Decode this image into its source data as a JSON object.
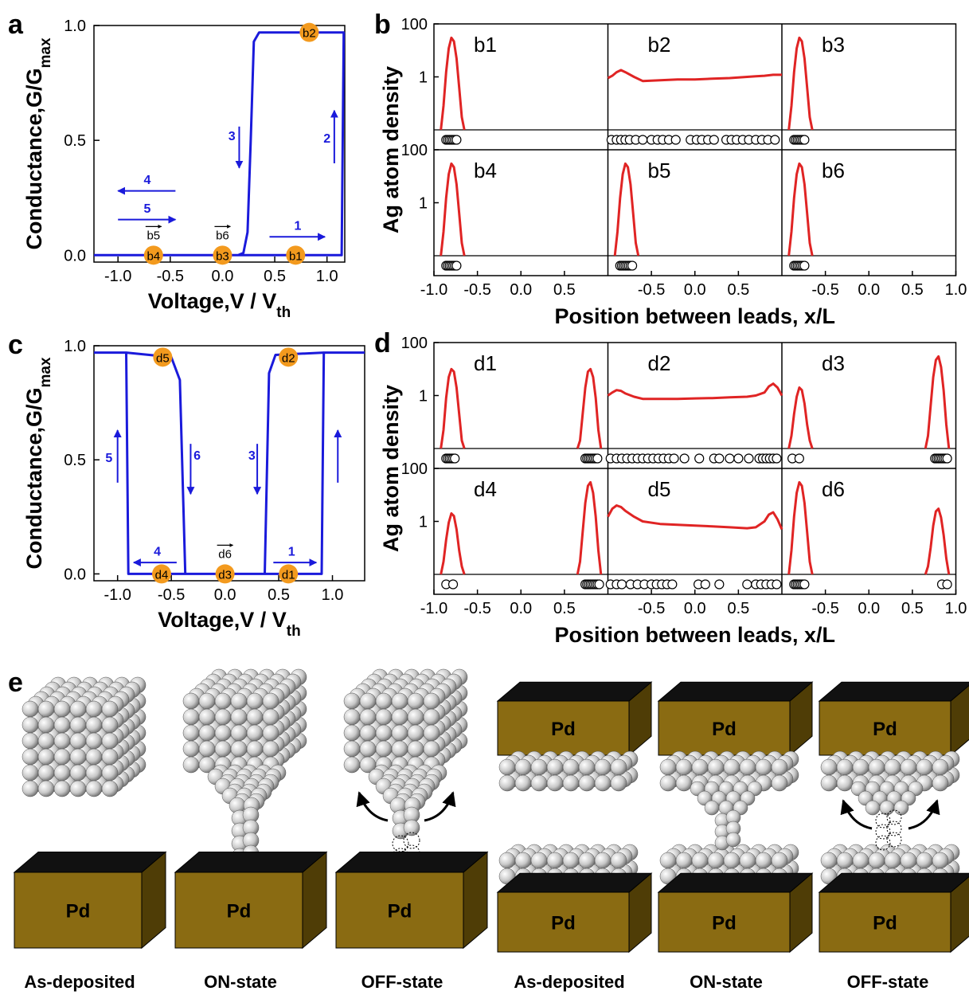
{
  "chart_data": [
    {
      "type": "line",
      "label": "a",
      "xlabel": "Voltage,V / V",
      "xlabel_sub": "th",
      "ylabel": "Conductance,G/G",
      "ylabel_sub": "max",
      "color": "#1a1adb",
      "xlim": [
        -1.23,
        1.17
      ],
      "ylim": [
        -0.03,
        1.0
      ],
      "xticks": [
        {
          "value": -1,
          "label": "-1.0"
        },
        {
          "value": -0.5,
          "label": "-0.5"
        },
        {
          "value": 0,
          "label": "0.0"
        },
        {
          "value": 0.5,
          "label": "0.5"
        },
        {
          "value": 1,
          "label": "1.0"
        }
      ],
      "yticks": [
        {
          "value": 0,
          "label": "0.0"
        },
        {
          "value": 0.5,
          "label": "0.5"
        },
        {
          "value": 1,
          "label": "1.0"
        }
      ],
      "x": [
        -1.23,
        1.14,
        1.16,
        0.35,
        0.3,
        0.27,
        0.24,
        0.2,
        0.15,
        -1.23
      ],
      "values": [
        0,
        0,
        0.97,
        0.97,
        0.93,
        0.5,
        0.1,
        0.01,
        0,
        0
      ],
      "marker_color": "#f39a1e",
      "markers": [
        {
          "label": "b1",
          "x": 0.7,
          "y": 0
        },
        {
          "label": "b2",
          "x": 0.83,
          "y": 0.97
        },
        {
          "label": "b3",
          "x": 0,
          "y": 0
        },
        {
          "label": "b4",
          "x": -0.66,
          "y": 0
        }
      ],
      "labels": [
        {
          "text": "b5",
          "x": -0.66
        },
        {
          "text": "b6",
          "x": 0
        }
      ],
      "arrow_labels": [
        "1",
        "2",
        "3",
        "4",
        "5"
      ]
    },
    {
      "type": "small-multiples",
      "label": "b",
      "xlabel": "Position between leads, x/L",
      "ylabel": "Ag atom density",
      "color": "#e02424",
      "log_y": true,
      "xlim": [
        -1,
        1
      ],
      "ylim": [
        0.01,
        100
      ],
      "yticks": [
        1,
        100
      ],
      "xticks": [
        {
          "value": -1,
          "label": "-1.0"
        },
        {
          "value": -0.5,
          "label": "-0.5"
        },
        {
          "value": 0,
          "label": "0.0"
        },
        {
          "value": 0.5,
          "label": "0.5"
        },
        {
          "value": 1,
          "label": "1.0"
        }
      ],
      "panels": [
        {
          "title": "b1",
          "x": [
            -0.92,
            -0.89,
            -0.86,
            -0.83,
            -0.8,
            -0.77,
            -0.74,
            -0.71,
            -0.68,
            -0.65
          ],
          "values": [
            0.01,
            0.08,
            1.5,
            12,
            30,
            22,
            5,
            0.4,
            0.03,
            0.01
          ],
          "atoms": [
            -0.86,
            -0.84,
            -0.82,
            -0.8,
            -0.78,
            -0.76,
            -0.74
          ]
        },
        {
          "title": "b2",
          "x": [
            -1,
            -0.95,
            -0.9,
            -0.85,
            -0.8,
            -0.7,
            -0.6,
            -0.4,
            -0.2,
            0,
            0.2,
            0.4,
            0.6,
            0.7,
            0.8,
            0.85,
            0.9,
            0.95,
            1
          ],
          "values": [
            0.9,
            1.1,
            1.5,
            1.8,
            1.5,
            1.0,
            0.7,
            0.75,
            0.8,
            0.8,
            0.85,
            0.9,
            1.0,
            1.05,
            1.1,
            1.15,
            1.2,
            1.2,
            1.2
          ],
          "atoms": [
            -0.96,
            -0.9,
            -0.85,
            -0.8,
            -0.75,
            -0.68,
            -0.6,
            -0.5,
            -0.43,
            -0.37,
            -0.3,
            -0.22,
            -0.05,
            0.02,
            0.08,
            0.15,
            0.22,
            0.36,
            0.42,
            0.48,
            0.55,
            0.62,
            0.7,
            0.77,
            0.84,
            0.92
          ]
        },
        {
          "title": "b3",
          "x": [
            -0.92,
            -0.89,
            -0.86,
            -0.83,
            -0.8,
            -0.77,
            -0.74,
            -0.71,
            -0.68,
            -0.65
          ],
          "values": [
            0.01,
            0.08,
            1.5,
            12,
            30,
            22,
            5,
            0.4,
            0.03,
            0.01
          ],
          "atoms": [
            -0.86,
            -0.84,
            -0.82,
            -0.8,
            -0.78,
            -0.76,
            -0.74
          ]
        },
        {
          "title": "b4",
          "x": [
            -0.92,
            -0.89,
            -0.86,
            -0.83,
            -0.8,
            -0.77,
            -0.74,
            -0.71,
            -0.68,
            -0.65
          ],
          "values": [
            0.01,
            0.08,
            1.5,
            12,
            30,
            22,
            5,
            0.4,
            0.03,
            0.01
          ],
          "atoms": [
            -0.86,
            -0.84,
            -0.82,
            -0.8,
            -0.78,
            -0.76,
            -0.74
          ]
        },
        {
          "title": "b5",
          "x": [
            -0.92,
            -0.89,
            -0.86,
            -0.83,
            -0.8,
            -0.77,
            -0.74,
            -0.71,
            -0.68,
            -0.65
          ],
          "values": [
            0.01,
            0.08,
            1.5,
            12,
            30,
            22,
            5,
            0.4,
            0.03,
            0.01
          ],
          "atoms": [
            -0.86,
            -0.84,
            -0.82,
            -0.8,
            -0.78,
            -0.76,
            -0.74,
            -0.72
          ]
        },
        {
          "title": "b6",
          "x": [
            -0.92,
            -0.89,
            -0.86,
            -0.83,
            -0.8,
            -0.77,
            -0.74,
            -0.71,
            -0.68,
            -0.65
          ],
          "values": [
            0.01,
            0.08,
            1.5,
            12,
            30,
            22,
            5,
            0.4,
            0.03,
            0.01
          ],
          "atoms": [
            -0.86,
            -0.84,
            -0.82,
            -0.8,
            -0.78,
            -0.76,
            -0.74
          ]
        }
      ]
    },
    {
      "type": "line",
      "label": "c",
      "xlabel": "Voltage,V / V",
      "xlabel_sub": "th",
      "ylabel": "Conductance,G/G",
      "ylabel_sub": "max",
      "color": "#1a1adb",
      "xlim": [
        -1.22,
        1.3
      ],
      "ylim": [
        -0.03,
        1.0
      ],
      "xticks": [
        {
          "value": -1,
          "label": "-1.0"
        },
        {
          "value": -0.5,
          "label": "-0.5"
        },
        {
          "value": 0,
          "label": "0.0"
        },
        {
          "value": 0.5,
          "label": "0.5"
        },
        {
          "value": 1,
          "label": "1.0"
        }
      ],
      "yticks": [
        {
          "value": 0,
          "label": "0.0"
        },
        {
          "value": 0.5,
          "label": "0.5"
        },
        {
          "value": 1,
          "label": "1.0"
        }
      ],
      "x": [
        -1.22,
        -0.92,
        -0.9,
        0.9,
        0.92,
        1.3,
        null,
        -0.92,
        -0.5,
        -0.42,
        -0.37,
        0.37,
        0.41,
        0.47,
        0.92
      ],
      "values": [
        0.97,
        0.97,
        0,
        0,
        0.97,
        0.97,
        null,
        0.97,
        0.95,
        0.85,
        0,
        0,
        0.88,
        0.96,
        0.97
      ],
      "marker_color": "#f39a1e",
      "markers": [
        {
          "label": "d1",
          "x": 0.59,
          "y": 0
        },
        {
          "label": "d2",
          "x": 0.59,
          "y": 0.95
        },
        {
          "label": "d3",
          "x": 0,
          "y": 0
        },
        {
          "label": "d4",
          "x": -0.59,
          "y": 0
        },
        {
          "label": "d5",
          "x": -0.58,
          "y": 0.95
        }
      ],
      "labels": [
        {
          "text": "d6",
          "x": 0
        }
      ],
      "arrow_labels": [
        "1",
        "3",
        "4",
        "5",
        "6"
      ]
    },
    {
      "type": "small-multiples",
      "label": "d",
      "xlabel": "Position between leads, x/L",
      "ylabel": "Ag atom density",
      "color": "#e02424",
      "log_y": true,
      "xlim": [
        -1,
        1
      ],
      "ylim": [
        0.01,
        100
      ],
      "yticks": [
        1,
        100
      ],
      "xticks": [
        {
          "value": -1,
          "label": "-1.0"
        },
        {
          "value": -0.5,
          "label": "-0.5"
        },
        {
          "value": 0,
          "label": "0.0"
        },
        {
          "value": 0.5,
          "label": "0.5"
        },
        {
          "value": 1,
          "label": "1.0"
        }
      ],
      "panels": [
        {
          "title": "d1",
          "x": [
            -0.92,
            -0.89,
            -0.86,
            -0.83,
            -0.8,
            -0.77,
            -0.74,
            -0.71,
            -0.68,
            -0.65,
            null,
            0.65,
            0.68,
            0.71,
            0.74,
            0.77,
            0.8,
            0.83,
            0.86,
            0.89,
            0.92
          ],
          "values": [
            0.01,
            0.05,
            0.8,
            5,
            10,
            8,
            2,
            0.2,
            0.02,
            0.01,
            null,
            0.01,
            0.02,
            0.2,
            2,
            8,
            10,
            5,
            0.8,
            0.05,
            0.01
          ],
          "atoms": [
            -0.86,
            -0.84,
            -0.82,
            -0.8,
            -0.78,
            -0.76,
            0.74,
            0.76,
            0.78,
            0.8,
            0.82,
            0.84,
            0.86,
            0.88
          ]
        },
        {
          "title": "d2",
          "x": [
            -1,
            -0.95,
            -0.9,
            -0.85,
            -0.8,
            -0.7,
            -0.6,
            -0.4,
            -0.2,
            0,
            0.2,
            0.4,
            0.6,
            0.7,
            0.8,
            0.85,
            0.9,
            0.95,
            1
          ],
          "values": [
            1.0,
            1.3,
            1.6,
            1.5,
            1.2,
            0.9,
            0.75,
            0.75,
            0.75,
            0.78,
            0.8,
            0.85,
            0.9,
            1.0,
            1.3,
            2.2,
            2.8,
            2.0,
            1.0
          ],
          "atoms": [
            -0.97,
            -0.9,
            -0.84,
            -0.78,
            -0.72,
            -0.66,
            -0.6,
            -0.54,
            -0.48,
            -0.42,
            -0.36,
            -0.3,
            -0.24,
            -0.12,
            0.05,
            0.22,
            0.28,
            0.4,
            0.5,
            0.62,
            0.74,
            0.78,
            0.82,
            0.86,
            0.9,
            0.94
          ]
        },
        {
          "title": "d3",
          "x": [
            -0.92,
            -0.89,
            -0.86,
            -0.83,
            -0.8,
            -0.77,
            -0.74,
            -0.71,
            -0.68,
            -0.65,
            null,
            0.65,
            0.68,
            0.71,
            0.74,
            0.77,
            0.8,
            0.83,
            0.86,
            0.89,
            0.92
          ],
          "values": [
            0.01,
            0.03,
            0.2,
            0.9,
            2,
            1.6,
            0.5,
            0.08,
            0.02,
            0.01,
            null,
            0.01,
            0.03,
            0.4,
            5,
            22,
            30,
            12,
            1.5,
            0.08,
            0.01
          ],
          "atoms": [
            -0.88,
            -0.8,
            0.76,
            0.78,
            0.8,
            0.82,
            0.84,
            0.86,
            0.88,
            0.9
          ]
        },
        {
          "title": "d4",
          "x": [
            -0.92,
            -0.89,
            -0.86,
            -0.83,
            -0.8,
            -0.77,
            -0.74,
            -0.71,
            -0.68,
            -0.65,
            null,
            0.65,
            0.68,
            0.71,
            0.74,
            0.77,
            0.8,
            0.83,
            0.86,
            0.89,
            0.92
          ],
          "values": [
            0.01,
            0.03,
            0.2,
            0.9,
            2,
            1.6,
            0.5,
            0.08,
            0.02,
            0.01,
            null,
            0.01,
            0.03,
            0.4,
            5,
            22,
            30,
            12,
            1.5,
            0.08,
            0.01
          ],
          "atoms": [
            -0.86,
            -0.78,
            0.74,
            0.76,
            0.78,
            0.8,
            0.82,
            0.84,
            0.86,
            0.88,
            0.9
          ]
        },
        {
          "title": "d5",
          "x": [
            -1,
            -0.95,
            -0.9,
            -0.85,
            -0.8,
            -0.7,
            -0.6,
            -0.4,
            -0.2,
            0,
            0.2,
            0.4,
            0.6,
            0.7,
            0.8,
            0.85,
            0.9,
            0.95,
            1
          ],
          "values": [
            1.5,
            3,
            4,
            3.5,
            2.5,
            1.5,
            1.0,
            0.8,
            0.75,
            0.7,
            0.65,
            0.6,
            0.55,
            0.6,
            1.0,
            1.8,
            2.2,
            1.2,
            0.5
          ],
          "atoms": [
            -0.97,
            -0.9,
            -0.84,
            -0.74,
            -0.66,
            -0.58,
            -0.5,
            -0.44,
            -0.38,
            -0.32,
            -0.26,
            0.04,
            0.12,
            0.28,
            0.6,
            0.7,
            0.76,
            0.82,
            0.88,
            0.94
          ]
        },
        {
          "title": "d6",
          "x": [
            -0.92,
            -0.89,
            -0.86,
            -0.83,
            -0.8,
            -0.77,
            -0.74,
            -0.71,
            -0.68,
            -0.65,
            null,
            0.65,
            0.68,
            0.71,
            0.74,
            0.77,
            0.8,
            0.83,
            0.86,
            0.89,
            0.92
          ],
          "values": [
            0.01,
            0.08,
            1.5,
            12,
            30,
            22,
            5,
            0.4,
            0.03,
            0.01,
            null,
            0.01,
            0.02,
            0.1,
            0.7,
            2.4,
            3,
            1.4,
            0.3,
            0.04,
            0.01
          ],
          "atoms": [
            -0.86,
            -0.84,
            -0.82,
            -0.8,
            -0.78,
            -0.76,
            -0.74,
            0.84,
            0.9
          ]
        }
      ]
    }
  ],
  "panel_e": {
    "label": "e",
    "electrode": "Pd",
    "captions": [
      "As-deposited",
      "ON-state",
      "OFF-state",
      "As-deposited",
      "ON-state",
      "OFF-state"
    ]
  }
}
